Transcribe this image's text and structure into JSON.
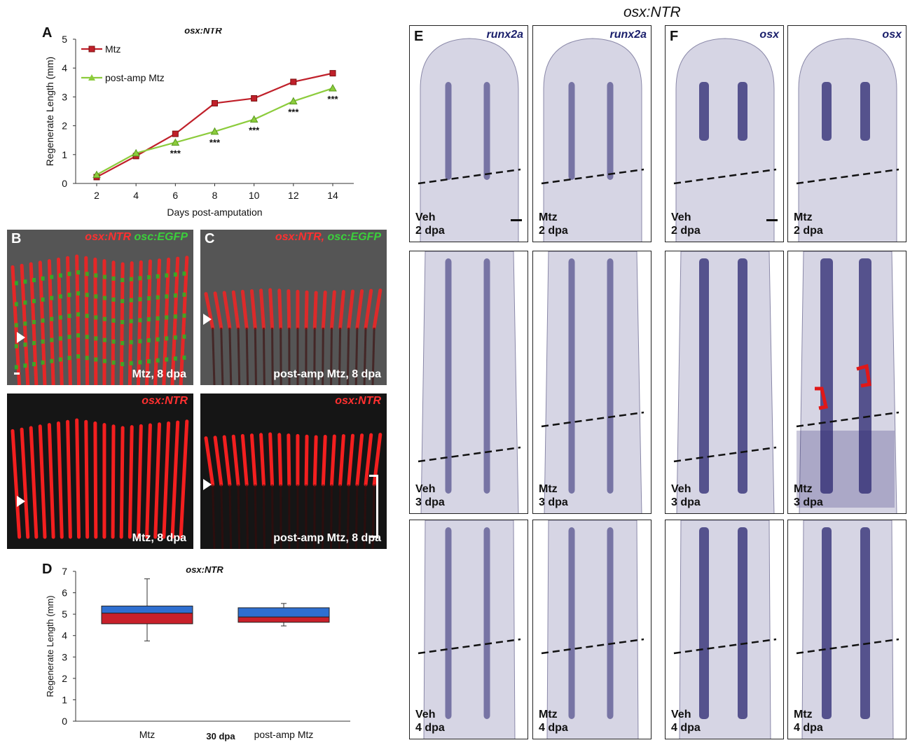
{
  "figure_title": "osx:NTR",
  "panel_letters": {
    "a": "A",
    "b": "B",
    "c": "C",
    "d": "D",
    "e": "E",
    "f": "F"
  },
  "colors": {
    "mtz": "#c0202a",
    "post_amp": "#8ccc3c",
    "ntr_red": "#ff2020",
    "egfp_green": "#22c020",
    "ish_purple": "#2a2570",
    "bar_blue": "#2f6fd0",
    "bar_red": "#c8202a"
  },
  "chart_data": [
    {
      "type": "line",
      "title": "osx:NTR",
      "xlabel": "Days post-amputation",
      "ylabel": "Regenerate Length (mm)",
      "x": [
        2,
        4,
        6,
        8,
        10,
        12,
        14
      ],
      "xlim": [
        2,
        14
      ],
      "ylim": [
        0,
        5
      ],
      "yticks": [
        0,
        1,
        2,
        3,
        4,
        5
      ],
      "legend": "top-left",
      "series": [
        {
          "name": "Mtz",
          "values": [
            0.22,
            0.95,
            1.72,
            2.78,
            2.95,
            3.52,
            3.82
          ],
          "errors": [
            0.05,
            0.05,
            0.05,
            0.06,
            0.06,
            0.1,
            0.1
          ]
        },
        {
          "name": "post-amp Mtz",
          "values": [
            0.3,
            1.05,
            1.42,
            1.8,
            2.22,
            2.85,
            3.3
          ],
          "errors": [
            0.05,
            0.05,
            0.05,
            0.06,
            0.08,
            0.08,
            0.08
          ]
        }
      ],
      "annotations": [
        {
          "x": 6,
          "text": "***"
        },
        {
          "x": 8,
          "text": "***"
        },
        {
          "x": 10,
          "text": "***"
        },
        {
          "x": 12,
          "text": "***"
        },
        {
          "x": 14,
          "text": "***"
        }
      ]
    },
    {
      "type": "bar",
      "title": "osx:NTR",
      "ylabel": "Regenerate Length (mm)",
      "xlabel": "30 dpa",
      "categories": [
        "Mtz",
        "post-amp Mtz"
      ],
      "ylim": [
        0,
        7
      ],
      "yticks": [
        0,
        1,
        2,
        3,
        4,
        5,
        6,
        7
      ],
      "boxes": [
        {
          "q1": 4.55,
          "median": 5.05,
          "q3": 5.38,
          "min": 3.75,
          "max": 6.65
        },
        {
          "q1": 4.62,
          "median": 4.87,
          "q3": 5.3,
          "min": 4.45,
          "max": 5.5
        }
      ]
    }
  ],
  "panel_b": {
    "top_channels": [
      "osx:NTR",
      "osc:EGFP"
    ],
    "top_caption": "Mtz, 8 dpa",
    "bottom_channel": "osx:NTR",
    "bottom_caption": "Mtz, 8 dpa"
  },
  "panel_c": {
    "top_channels": [
      "osx:NTR,",
      "osc:EGFP"
    ],
    "top_caption": "post-amp Mtz, 8 dpa",
    "bottom_channel": "osx:NTR",
    "bottom_caption": "post-amp Mtz, 8 dpa"
  },
  "panel_e": {
    "gene": "runx2a",
    "cells": [
      [
        "Veh",
        "2 dpa"
      ],
      [
        "Mtz",
        "2 dpa"
      ],
      [
        "Veh",
        "3 dpa"
      ],
      [
        "Mtz",
        "3 dpa"
      ],
      [
        "Veh",
        "4 dpa"
      ],
      [
        "Mtz",
        "4 dpa"
      ]
    ]
  },
  "panel_f": {
    "gene": "osx",
    "cells": [
      [
        "Veh",
        "2 dpa"
      ],
      [
        "Mtz",
        "2 dpa"
      ],
      [
        "Veh",
        "3 dpa"
      ],
      [
        "Mtz",
        "3 dpa"
      ],
      [
        "Veh",
        "4 dpa"
      ],
      [
        "Mtz",
        "4 dpa"
      ]
    ]
  }
}
